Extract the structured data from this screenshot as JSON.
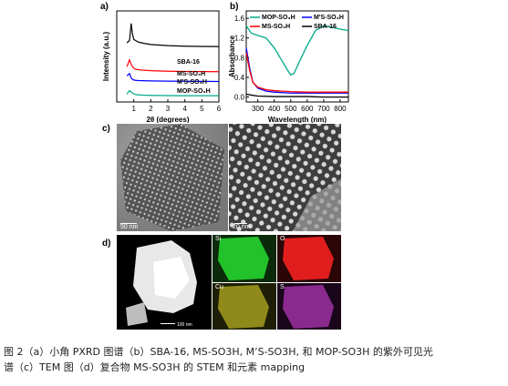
{
  "panel_labels": {
    "a": "a)",
    "b": "b)",
    "c": "c)",
    "d": "d)"
  },
  "chart_data": [
    {
      "type": "line",
      "panel": "a",
      "xlabel": "2θ (degrees)",
      "ylabel": "Intensity (a.u.)",
      "xlim": [
        0,
        6
      ],
      "xticks": [
        "1",
        "2",
        "3",
        "4",
        "5",
        "6"
      ],
      "series": [
        {
          "name": "SBA-16",
          "color": "#000000",
          "x": [
            0.6,
            0.75,
            0.85,
            0.92,
            1.0,
            1.1,
            1.3,
            1.6,
            2,
            3,
            4,
            5,
            6
          ],
          "y": [
            5.7,
            5.9,
            7.4,
            6.5,
            6.0,
            5.9,
            5.75,
            5.65,
            5.55,
            5.45,
            5.4,
            5.38,
            5.37
          ]
        },
        {
          "name": "MS-SO3H",
          "color": "#ff0000",
          "x": [
            0.6,
            0.75,
            0.85,
            0.95,
            1.05,
            1.2,
            1.5,
            2,
            3,
            4,
            5,
            6
          ],
          "y": [
            3.6,
            4.2,
            3.8,
            3.55,
            3.4,
            3.35,
            3.3,
            3.25,
            3.2,
            3.18,
            3.17,
            3.16
          ]
        },
        {
          "name": "M'S-SO3H",
          "color": "#0000ff",
          "x": [
            0.6,
            0.75,
            0.85,
            0.95,
            1.1,
            1.3,
            2,
            3,
            4,
            5,
            6
          ],
          "y": [
            2.8,
            3.0,
            2.6,
            2.45,
            2.4,
            2.38,
            2.35,
            2.33,
            2.32,
            2.31,
            2.3
          ]
        },
        {
          "name": "MOP-SO3H",
          "color": "#00aa88",
          "x": [
            0.6,
            0.75,
            0.9,
            1.1,
            1.5,
            2,
            3,
            4,
            5,
            6
          ],
          "y": [
            1.2,
            1.5,
            1.3,
            1.15,
            1.1,
            1.08,
            1.06,
            1.05,
            1.05,
            1.05
          ]
        }
      ],
      "labels_text": [
        "SBA-16",
        "MS-SO₃H",
        "M'S-SO₃H",
        "MOP-SO₃H"
      ]
    },
    {
      "type": "line",
      "panel": "b",
      "xlabel": "Wavelength (nm)",
      "ylabel": "Absorbance",
      "xlim": [
        230,
        850
      ],
      "ylim": [
        -0.1,
        1.75
      ],
      "xticks": [
        "300",
        "400",
        "500",
        "600",
        "700",
        "800"
      ],
      "yticks": [
        "0.0",
        "0.4",
        "0.8",
        "1.2",
        "1.6"
      ],
      "series": [
        {
          "name": "MOP-SO₃H",
          "color": "#00aa88",
          "x": [
            230,
            260,
            300,
            350,
            400,
            450,
            480,
            500,
            520,
            550,
            600,
            650,
            700,
            750,
            800,
            850
          ],
          "y": [
            1.45,
            1.3,
            1.25,
            1.2,
            1.0,
            0.72,
            0.55,
            0.45,
            0.48,
            0.7,
            1.05,
            1.35,
            1.45,
            1.42,
            1.38,
            1.35
          ]
        },
        {
          "name": "M'S-SO₃H",
          "color": "#0000ff",
          "x": [
            230,
            250,
            270,
            300,
            350,
            400,
            450,
            500,
            600,
            700,
            800,
            850
          ],
          "y": [
            1.0,
            0.6,
            0.3,
            0.18,
            0.12,
            0.1,
            0.09,
            0.08,
            0.08,
            0.08,
            0.08,
            0.08
          ]
        },
        {
          "name": "MS-SO₃H",
          "color": "#ff0000",
          "x": [
            230,
            250,
            270,
            300,
            350,
            400,
            450,
            500,
            600,
            700,
            800,
            850
          ],
          "y": [
            0.9,
            0.55,
            0.3,
            0.2,
            0.15,
            0.13,
            0.12,
            0.11,
            0.1,
            0.1,
            0.1,
            0.1
          ]
        },
        {
          "name": "SBA-16",
          "color": "#000000",
          "x": [
            230,
            260,
            300,
            400,
            500,
            600,
            700,
            800,
            850
          ],
          "y": [
            0.06,
            0.04,
            0.02,
            0.01,
            0.01,
            0.01,
            0.0,
            0.0,
            0.0
          ]
        }
      ]
    }
  ],
  "tem": {
    "scale_left": "50 nm",
    "scale_right": "20 nm"
  },
  "stem": {
    "scale": "100 nm",
    "labels": [
      "Si",
      "O",
      "Cu",
      "S"
    ]
  },
  "caption": {
    "line1": "图 2（a）小角 PXRD 图谱（b）SBA-16, MS-SO3H, M’S-SO3H, 和 MOP-SO3H 的紫外可见光",
    "line2": "谱（c）TEM 图（d）复合物 MS-SO3H 的 STEM 和元素 mapping"
  }
}
